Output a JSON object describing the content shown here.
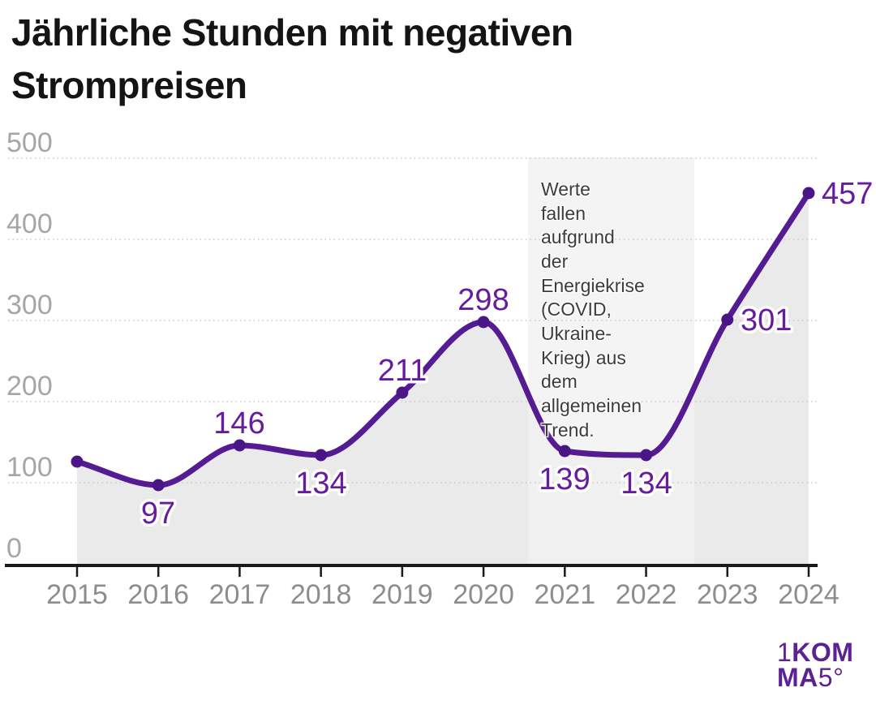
{
  "title": "Jährliche Stunden mit negativen Strompreisen",
  "chart_data": {
    "type": "line",
    "x": [
      2015,
      2016,
      2017,
      2018,
      2019,
      2020,
      2021,
      2022,
      2023,
      2024
    ],
    "values": [
      126,
      97,
      146,
      134,
      211,
      298,
      139,
      134,
      301,
      457
    ],
    "point_labels": [
      "",
      "97",
      "146",
      "134",
      "211",
      "298",
      "139",
      "134",
      "301",
      "457"
    ],
    "label_positions": [
      "none",
      "below",
      "above",
      "below",
      "above",
      "above",
      "below",
      "below",
      "right",
      "right"
    ],
    "title": "Jährliche Stunden mit negativen Strompreisen",
    "xlabel": "",
    "ylabel": "",
    "ylim": [
      0,
      500
    ],
    "yticks": [
      0,
      100,
      200,
      300,
      400,
      500
    ],
    "grid": true,
    "legend": "none",
    "area_fill_under_line": true,
    "annotation": {
      "text": "Werte fallen aufgrund der Energiekrise (COVID, Ukraine-Krieg) aus dem allgemeinen Trend.",
      "band_x_start": 2020.55,
      "band_x_end": 2022.6
    },
    "colors": {
      "line": "#541b93",
      "point": "#4a1685",
      "value_label": "#671c9e",
      "area_fill": "#eaeaea",
      "band": "rgba(241,241,241,0.8)",
      "gridline": "#c9c9c9",
      "axis": "#1a1a1a",
      "xtick_label": "#8d8d8d",
      "ytick_label": "#a6a6a6"
    }
  },
  "logo": {
    "part1": "1",
    "part2": "KOM",
    "part3": "MA",
    "part4": "5°",
    "color": "#5c2193"
  }
}
